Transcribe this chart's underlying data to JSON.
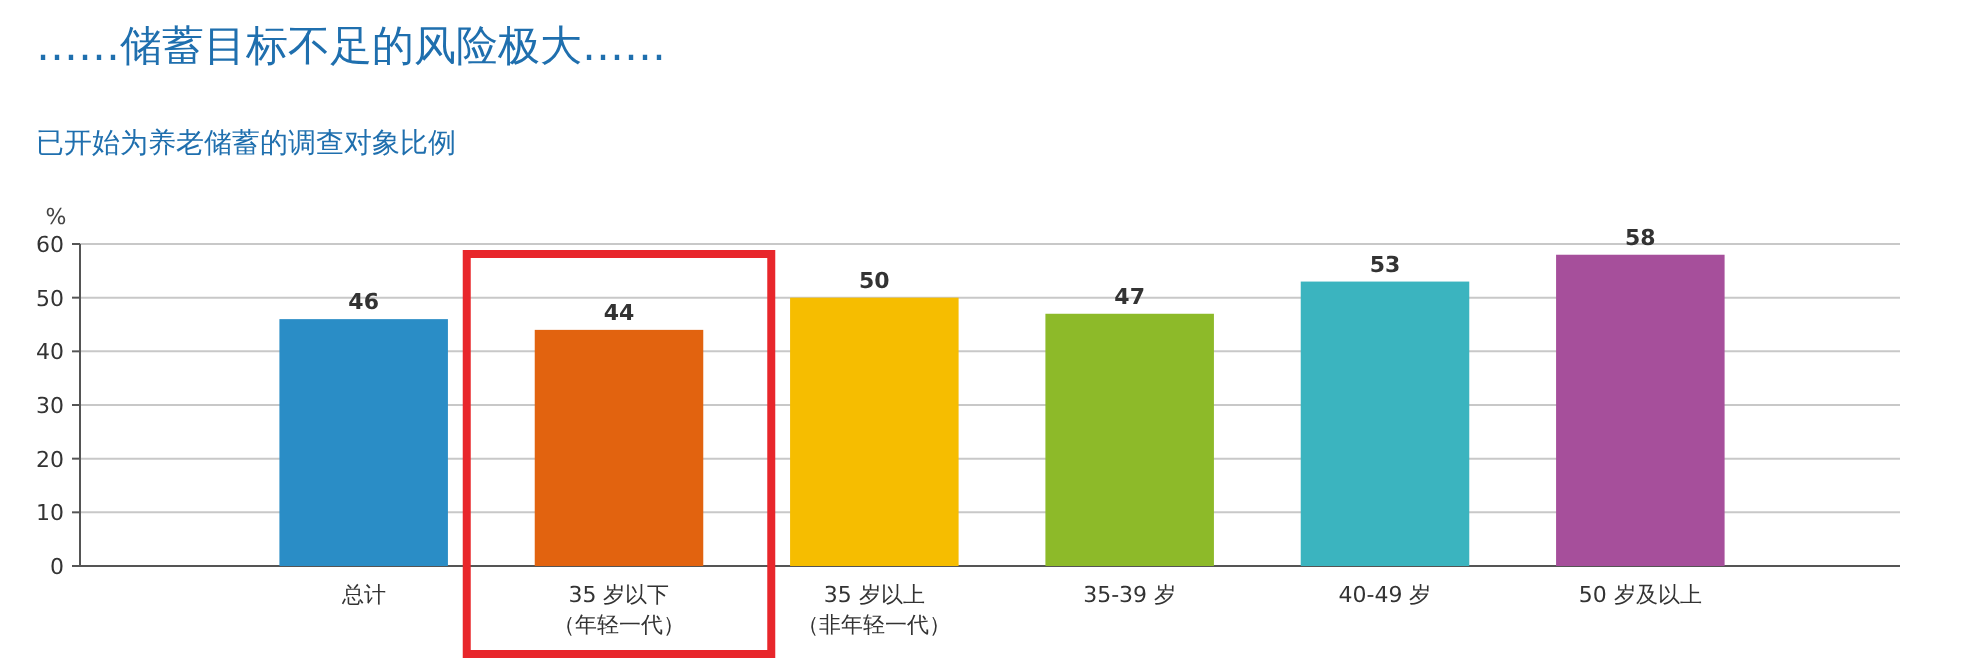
{
  "chart_data": {
    "type": "bar",
    "title": "……储蓄目标不足的风险极大……",
    "subtitle": "已开始为养老储蓄的调查对象比例",
    "ylabel": "%",
    "categories": [
      "总计",
      "35 岁以下（年轻一代）",
      "35 岁以上（非年轻一代）",
      "35-39 岁",
      "40-49 岁",
      "50 岁及以上"
    ],
    "values": [
      46,
      44,
      50,
      47,
      53,
      58
    ],
    "colors": [
      "#2a8dc6",
      "#e2630f",
      "#f6bd00",
      "#8dba29",
      "#3bb4bf",
      "#a64f9b"
    ],
    "ylim": [
      0,
      60
    ],
    "yticks": [
      0,
      10,
      20,
      30,
      40,
      50,
      60
    ],
    "grid": "y",
    "data_labels": true
  }
}
